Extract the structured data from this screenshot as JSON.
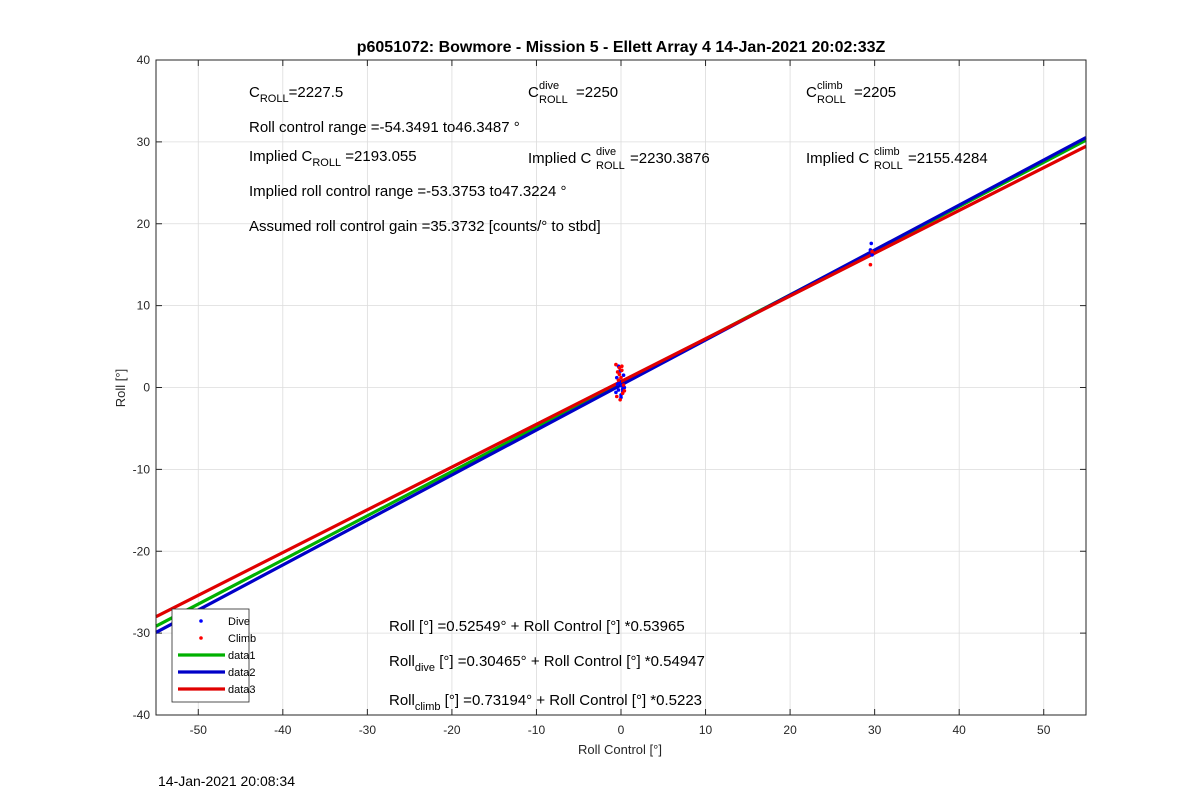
{
  "chart_data": {
    "type": "scatter",
    "title": "p6051072: Bowmore - Mission 5 - Ellett Array 4 14-Jan-2021 20:02:33Z",
    "xlabel": "Roll Control [°]",
    "ylabel": "Roll [°]",
    "xlim": [
      -55,
      55
    ],
    "ylim": [
      -40,
      40
    ],
    "xticks": [
      -50,
      -40,
      -30,
      -20,
      -10,
      0,
      10,
      20,
      30,
      40,
      50
    ],
    "yticks": [
      -40,
      -30,
      -20,
      -10,
      0,
      10,
      20,
      30,
      40
    ],
    "grid": true,
    "legend_position": "bottom-left",
    "series": [
      {
        "name": "Dive",
        "kind": "points",
        "color": "#0000ff",
        "x": [
          -0.5,
          -0.4,
          -0.3,
          -0.2,
          -0.1,
          0.0,
          0.1,
          0.2,
          0.3,
          -0.6,
          -0.3,
          0.0,
          0.4,
          -0.2,
          0.2,
          29.5,
          29.6,
          29.7
        ],
        "y": [
          1.2,
          0.4,
          -0.3,
          0.8,
          2.0,
          -0.9,
          0.2,
          -0.5,
          1.5,
          -0.6,
          2.6,
          -1.2,
          0.0,
          0.6,
          -0.2,
          16.8,
          17.6,
          16.2
        ]
      },
      {
        "name": "Climb",
        "kind": "points",
        "color": "#ff0000",
        "x": [
          -0.6,
          -0.4,
          -0.3,
          -0.2,
          -0.1,
          0.0,
          0.1,
          0.2,
          0.3,
          -0.5,
          -0.2,
          0.1,
          0.4,
          29.5,
          29.7
        ],
        "y": [
          2.8,
          1.9,
          0.9,
          2.4,
          -1.5,
          1.2,
          2.1,
          -0.7,
          0.3,
          -1.1,
          1.6,
          2.6,
          -0.4,
          15.0,
          16.6
        ]
      },
      {
        "name": "data1",
        "kind": "line",
        "color": "#00b000",
        "intercept": 0.52549,
        "slope": 0.53965
      },
      {
        "name": "data2",
        "kind": "line",
        "color": "#0000c8",
        "intercept": 0.30465,
        "slope": 0.54947
      },
      {
        "name": "data3",
        "kind": "line",
        "color": "#e00000",
        "intercept": 0.73194,
        "slope": 0.5223
      }
    ]
  },
  "annotations": {
    "c_roll": {
      "base": "C",
      "sub": "ROLL",
      "value": "=2227.5"
    },
    "c_roll_dive": {
      "base": "C",
      "sup": "dive",
      "sub": "ROLL",
      "value": " =2250"
    },
    "c_roll_climb": {
      "base": "C",
      "sup": "climb",
      "sub": "ROLL",
      "value": " =2205"
    },
    "roll_range": "Roll control range =-54.3491 to46.3487 °",
    "implied_c_roll": {
      "prefix": "Implied C",
      "sub": "ROLL",
      "value": " =2193.055"
    },
    "implied_c_roll_dive": {
      "prefix": "Implied C",
      "sup": "dive",
      "sub": "ROLL",
      "value": " =2230.3876"
    },
    "implied_c_roll_climb": {
      "prefix": "Implied C",
      "sup": "climb",
      "sub": "ROLL",
      "value": " =2155.4284"
    },
    "implied_range": "Implied roll control range =-53.3753 to47.3224 °",
    "gain": "Assumed roll control gain =35.3732 [counts/° to stbd]",
    "fit_all": "Roll [°] =0.52549° + Roll Control [°] *0.53965",
    "fit_dive": {
      "base": "Roll",
      "sub": "dive",
      "rest": " [°] =0.30465° + Roll Control [°] *0.54947"
    },
    "fit_climb": {
      "base": "Roll",
      "sub": "climb",
      "rest": " [°] =0.73194° + Roll Control [°] *0.5223"
    }
  },
  "footer_timestamp": "14-Jan-2021 20:08:34"
}
